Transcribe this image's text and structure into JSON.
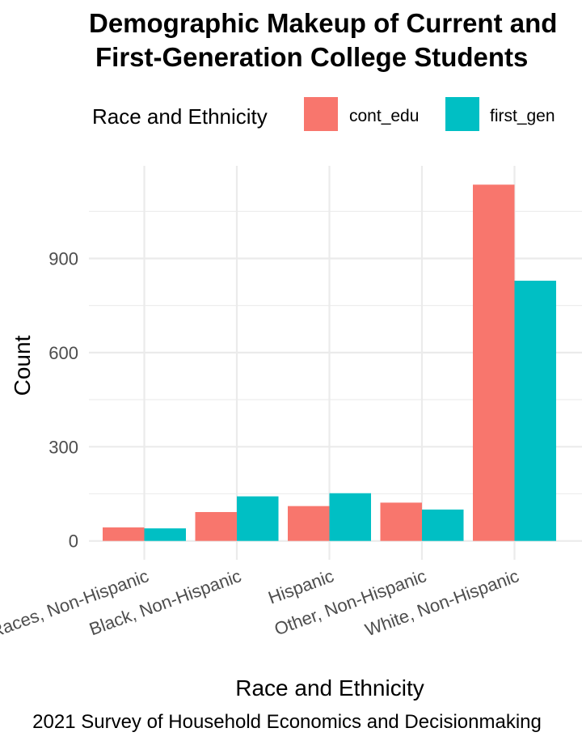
{
  "chart_data": {
    "type": "bar",
    "title_lines": [
      "Demographic Makeup of Current and",
      "First-Generation College Students"
    ],
    "xlabel": "Race and Ethnicity",
    "ylabel": "Count",
    "caption": "2021 Survey of Household Economics and Decisionmaking",
    "legend": {
      "title": "Race and Ethnicity",
      "position": "top"
    },
    "categories": [
      "Two or More Races, Non-Hispanic",
      "Black, Non-Hispanic",
      "Hispanic",
      "Other, Non-Hispanic",
      "White, Non-Hispanic"
    ],
    "series": [
      {
        "name": "cont_edu",
        "color": "#F8766D",
        "values": [
          43,
          92,
          111,
          122,
          1135
        ]
      },
      {
        "name": "first_gen",
        "color": "#00BFC4",
        "values": [
          40,
          142,
          152,
          100,
          829
        ]
      }
    ],
    "yticks": [
      0,
      300,
      600,
      900
    ],
    "ylim": [
      -60,
      1195
    ],
    "grid": true
  }
}
